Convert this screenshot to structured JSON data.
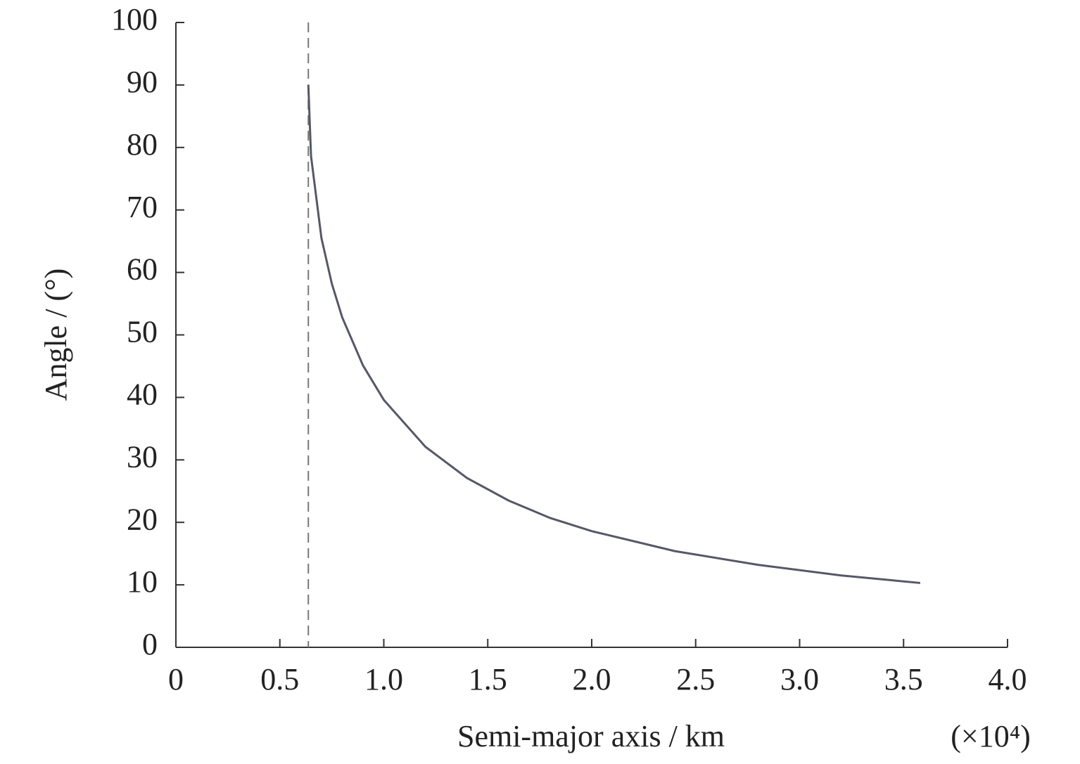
{
  "chart_data": {
    "type": "line",
    "x_label": "Semi-major axis / km",
    "y_label": "Angle / (°)",
    "x_multiplier": "(×10⁴)",
    "x": [
      0.637,
      0.65,
      0.7,
      0.75,
      0.8,
      0.9,
      1.0,
      1.2,
      1.4,
      1.6,
      1.8,
      2.0,
      2.4,
      2.8,
      3.2,
      3.58
    ],
    "series": [
      {
        "color": "#555868",
        "values": [
          90,
          78.6,
          65.5,
          58.2,
          52.8,
          45.1,
          39.6,
          32.1,
          27.1,
          23.5,
          20.7,
          18.6,
          15.4,
          13.2,
          11.5,
          10.3
        ]
      }
    ],
    "vline": {
      "x": 0.637,
      "color": "#777777"
    },
    "xlim": [
      0,
      4.0
    ],
    "ylim": [
      0,
      100
    ],
    "xticks": [
      0,
      0.5,
      {
        "value": 1.0,
        "label": "1.0"
      },
      1.5,
      {
        "value": 2.0,
        "label": "2.0"
      },
      2.5,
      {
        "value": 3.0,
        "label": "3.0"
      },
      3.5,
      {
        "value": 4.0,
        "label": "4.0"
      }
    ],
    "yticks": [
      0,
      10,
      20,
      30,
      40,
      50,
      60,
      70,
      80,
      90,
      100
    ]
  }
}
